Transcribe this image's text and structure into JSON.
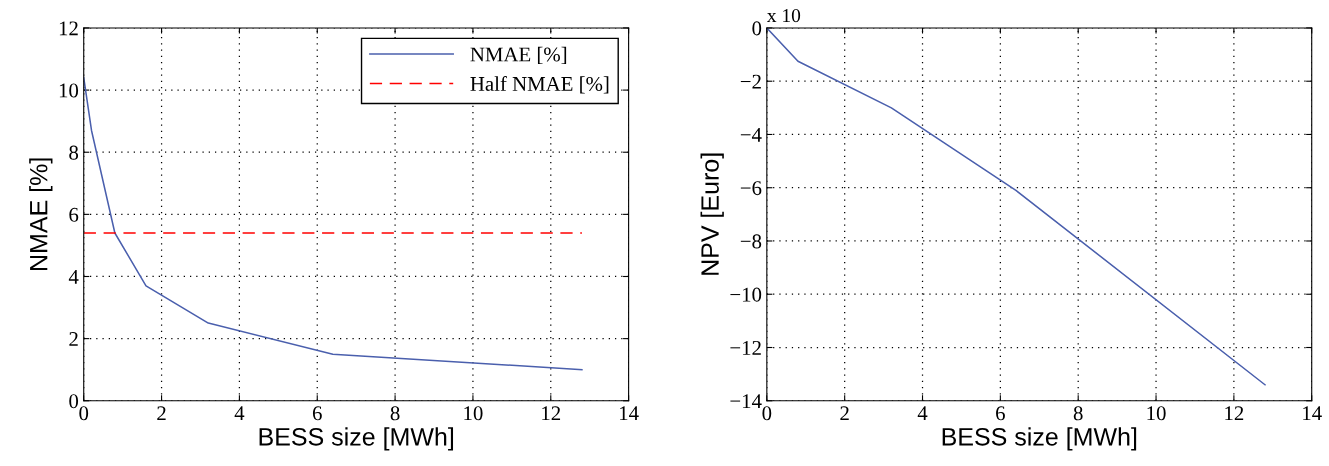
{
  "chart_data": [
    {
      "type": "line",
      "xlabel": "BESS size [MWh]",
      "ylabel": "NMAE [%]",
      "xlim": [
        0,
        14
      ],
      "ylim": [
        0,
        12
      ],
      "xticks": [
        0,
        2,
        4,
        6,
        8,
        10,
        12,
        14
      ],
      "yticks": [
        0,
        2,
        4,
        6,
        8,
        10,
        12
      ],
      "grid": true,
      "legend": "top right",
      "series": [
        {
          "name": "NMAE [%]",
          "color": "#4a5fad",
          "line_style": "solid",
          "x": [
            0,
            0.2,
            0.8,
            1.6,
            3.2,
            6.4,
            12.8
          ],
          "values": [
            10.4,
            8.7,
            5.4,
            3.7,
            2.5,
            1.5,
            1.0
          ]
        },
        {
          "name": "Half NMAE [%]",
          "color": "#ff0000",
          "line_style": "dashed",
          "x": [
            0,
            12.8
          ],
          "values": [
            5.4,
            5.4
          ]
        }
      ]
    },
    {
      "type": "line",
      "xlabel": "BESS size [MWh]",
      "ylabel": "NPV [Euro]",
      "xlim": [
        0,
        14
      ],
      "ylim": [
        -14,
        0
      ],
      "xticks": [
        0,
        2,
        4,
        6,
        8,
        10,
        12,
        14
      ],
      "yticks": [
        {
          "value": -14,
          "label": "−14"
        },
        {
          "value": -12,
          "label": "−12"
        },
        {
          "value": -10,
          "label": "−10"
        },
        {
          "value": -8,
          "label": "−8"
        },
        {
          "value": -6,
          "label": "−6"
        },
        {
          "value": -4,
          "label": "−4"
        },
        {
          "value": -2,
          "label": "−2"
        },
        0
      ],
      "grid": true,
      "annotations": [
        "x 10"
      ],
      "series": [
        {
          "color": "#4a5fad",
          "line_style": "solid",
          "x": [
            0,
            0.8,
            3.2,
            6.4,
            12.8
          ],
          "values": [
            0,
            -1.25,
            -3.0,
            -6.1,
            -13.4
          ]
        }
      ]
    }
  ]
}
